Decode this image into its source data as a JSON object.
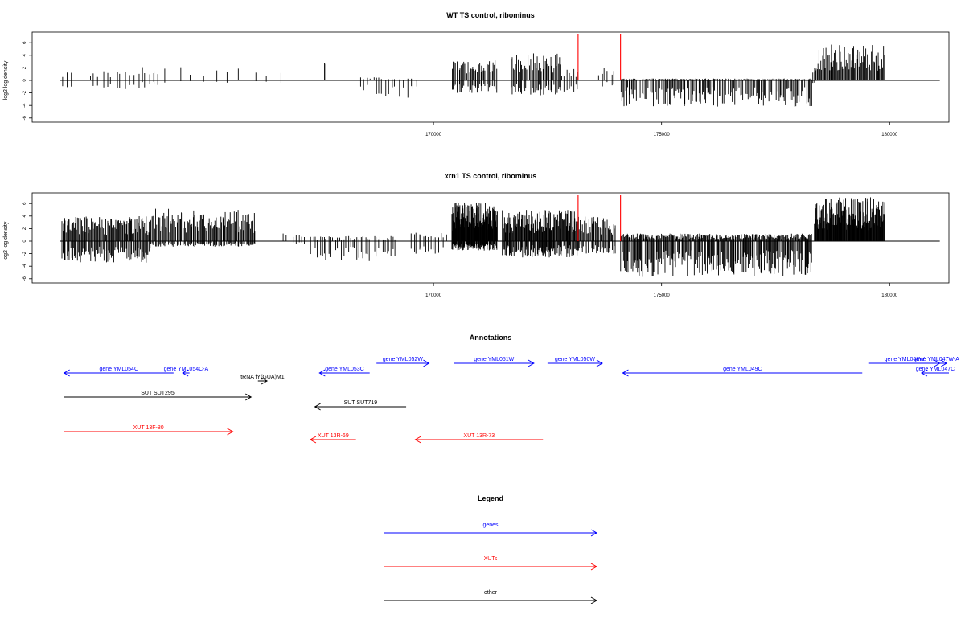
{
  "chart_data": [
    {
      "type": "bar",
      "title": "WT TS control, ribominus",
      "ylabel": "log2 log density",
      "xlabel": "",
      "xlim": [
        161200,
        181300
      ],
      "ylim": [
        -6,
        7
      ],
      "yticks": [
        -6,
        -4,
        -2,
        0,
        2,
        4,
        6
      ],
      "xticks": [
        170000,
        175000,
        180000
      ],
      "xtick_labels": [
        "170000",
        "175000",
        "180000"
      ],
      "grid": false,
      "baseline": [
        161800,
        181100
      ],
      "red_markers_x": [
        173170,
        174100
      ],
      "regions": [
        {
          "from": 161850,
          "to": 162100,
          "plus": 1.5,
          "minus": -1.2,
          "n": 3
        },
        {
          "from": 162400,
          "to": 164000,
          "plus": 1.7,
          "minus": -1.8,
          "n": 16
        },
        {
          "from": 163200,
          "to": 167000,
          "plus": 2.2,
          "minus": -0.4,
          "n": 14
        },
        {
          "from": 167600,
          "to": 167650,
          "plus": 3.0,
          "minus": 0,
          "n": 2
        },
        {
          "from": 168400,
          "to": 168900,
          "plus": 0.5,
          "minus": -2.6,
          "n": 8
        },
        {
          "from": 168900,
          "to": 169700,
          "plus": 0.3,
          "minus": -2.8,
          "n": 10
        },
        {
          "from": 170400,
          "to": 171400,
          "plus": 3.2,
          "minus": -2.0,
          "n": 40
        },
        {
          "from": 171700,
          "to": 172800,
          "plus": 4.5,
          "minus": -2.4,
          "n": 45
        },
        {
          "from": 172800,
          "to": 173200,
          "plus": 2.0,
          "minus": -2.2,
          "n": 8
        },
        {
          "from": 173600,
          "to": 174000,
          "plus": 2.5,
          "minus": -1.0,
          "n": 6
        },
        {
          "from": 174100,
          "to": 178300,
          "plus": 0.3,
          "minus": -4.2,
          "n": 170
        },
        {
          "from": 178300,
          "to": 178400,
          "plus": 2.5,
          "minus": -0.5,
          "n": 2
        },
        {
          "from": 178350,
          "to": 179900,
          "plus": 5.8,
          "minus": 0,
          "n": 80
        }
      ]
    },
    {
      "type": "bar",
      "title": "xrn1 TS control, ribominus",
      "ylabel": "log2 log density",
      "xlabel": "",
      "xlim": [
        161200,
        181300
      ],
      "ylim": [
        -6,
        7
      ],
      "yticks": [
        -6,
        -4,
        -2,
        0,
        2,
        4,
        6
      ],
      "xticks": [
        170000,
        175000,
        180000
      ],
      "xtick_labels": [
        "170000",
        "175000",
        "180000"
      ],
      "grid": false,
      "baseline": [
        161800,
        181100
      ],
      "red_markers_x": [
        173170,
        174100
      ],
      "regions": [
        {
          "from": 161850,
          "to": 163800,
          "plus": 4.0,
          "minus": -3.5,
          "n": 110
        },
        {
          "from": 163800,
          "to": 166100,
          "plus": 5.2,
          "minus": -0.9,
          "n": 110
        },
        {
          "from": 166700,
          "to": 166800,
          "plus": 3.0,
          "minus": 0,
          "n": 2
        },
        {
          "from": 166900,
          "to": 167200,
          "plus": 1.2,
          "minus": -0.5,
          "n": 5
        },
        {
          "from": 167300,
          "to": 169200,
          "plus": 0.8,
          "minus": -3.5,
          "n": 40
        },
        {
          "from": 169500,
          "to": 170300,
          "plus": 1.5,
          "minus": -2.0,
          "n": 15
        },
        {
          "from": 170400,
          "to": 171400,
          "plus": 6.2,
          "minus": -1.5,
          "n": 120
        },
        {
          "from": 171500,
          "to": 173200,
          "plus": 5.0,
          "minus": -2.6,
          "n": 130
        },
        {
          "from": 173200,
          "to": 174000,
          "plus": 4.0,
          "minus": -2.0,
          "n": 40
        },
        {
          "from": 174100,
          "to": 178300,
          "plus": 1.2,
          "minus": -5.8,
          "n": 260
        },
        {
          "from": 178350,
          "to": 179900,
          "plus": 7.0,
          "minus": 0,
          "n": 160
        }
      ]
    },
    {
      "type": "annotation-track",
      "title": "Annotations",
      "xlim": [
        161200,
        181300
      ],
      "features": [
        {
          "label": "gene YML054C",
          "class": "gene",
          "strand": "-",
          "start": 161900,
          "end": 164300,
          "row": 1
        },
        {
          "label": "gene YML054C-A",
          "class": "gene",
          "strand": "-",
          "start": 164500,
          "end": 164650,
          "row": 1
        },
        {
          "label": "gene YML053C",
          "class": "gene",
          "strand": "-",
          "start": 167500,
          "end": 168600,
          "row": 1
        },
        {
          "label": "tRNA fY(GUA)M1",
          "class": "other",
          "strand": "+",
          "start": 166150,
          "end": 166350,
          "row": 2
        },
        {
          "label": "gene YML052W",
          "class": "gene",
          "strand": "+",
          "start": 168750,
          "end": 169900,
          "row": 0
        },
        {
          "label": "gene YML051W",
          "class": "gene",
          "strand": "+",
          "start": 170450,
          "end": 172200,
          "row": 0
        },
        {
          "label": "gene YML050W",
          "class": "gene",
          "strand": "+",
          "start": 172500,
          "end": 173700,
          "row": 0
        },
        {
          "label": "gene YML049C",
          "class": "gene",
          "strand": "-",
          "start": 174150,
          "end": 179400,
          "row": 1
        },
        {
          "label": "gene YML048W",
          "class": "gene",
          "strand": "+",
          "start": 179550,
          "end": 181100,
          "row": 0
        },
        {
          "label": "gene YML047W-A",
          "class": "gene",
          "strand": "+",
          "start": 180800,
          "end": 181250,
          "row": 0
        },
        {
          "label": "gene YML047C",
          "class": "gene",
          "strand": "-",
          "start": 180700,
          "end": 181300,
          "row": 1
        },
        {
          "label": "SUT SUT295",
          "class": "other",
          "strand": "+",
          "start": 161900,
          "end": 166000,
          "row": 3
        },
        {
          "label": "SUT SUT719",
          "class": "other",
          "strand": "-",
          "start": 167400,
          "end": 169400,
          "row": 4
        },
        {
          "label": "XUT 13F-80",
          "class": "xut",
          "strand": "+",
          "start": 161900,
          "end": 165600,
          "row": 5
        },
        {
          "label": "XUT 13R-69",
          "class": "xut",
          "strand": "-",
          "start": 167300,
          "end": 168300,
          "row": 6
        },
        {
          "label": "XUT 13R-73",
          "class": "xut",
          "strand": "-",
          "start": 169600,
          "end": 172400,
          "row": 6
        }
      ]
    },
    {
      "type": "legend",
      "title": "Legend",
      "entries": [
        {
          "label": "genes",
          "class": "gene"
        },
        {
          "label": "XUTs",
          "class": "xut"
        },
        {
          "label": "other",
          "class": "other"
        }
      ]
    }
  ],
  "colors": {
    "gene": "#0000ff",
    "xut": "#ff0000",
    "other": "#000000",
    "marker": "#ff0000",
    "axis": "#000000",
    "data": "#000000"
  }
}
